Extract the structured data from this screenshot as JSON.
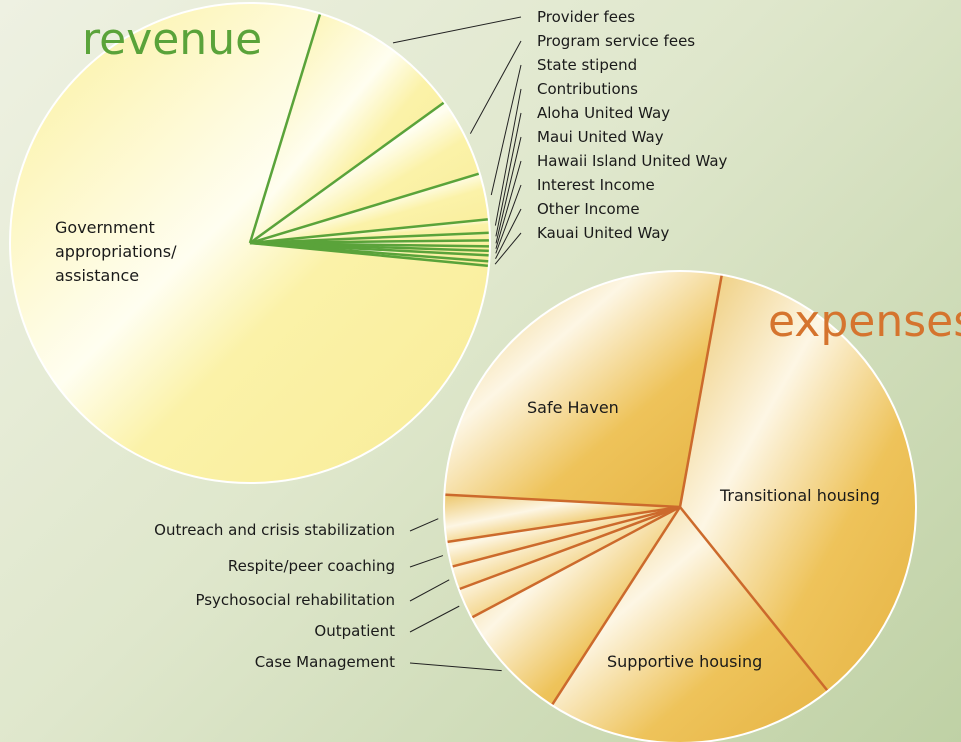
{
  "chart_data": [
    {
      "type": "pie",
      "title": "revenue",
      "categories": [
        "Provider fees",
        "Program service fees",
        "State stipend",
        "Contributions",
        "Aloha United Way",
        "Maui United Way",
        "Hawaii Island United Way",
        "Interest Income",
        "Other Income",
        "Kauai United Way",
        "Government appropriations/ assistance"
      ],
      "values": [
        10.3,
        5.3,
        3.1,
        0.9,
        0.5,
        0.4,
        0.3,
        0.3,
        0.4,
        0.3,
        78.2
      ],
      "color": "#fcf3a2",
      "line_color": "#5aa33a",
      "title_color": "#5aa33a"
    },
    {
      "type": "pie",
      "title": "expenses",
      "categories": [
        "Transitional housing",
        "Supportive housing",
        "Case Management",
        "Outpatient",
        "Psychosocial rehabilitation",
        "Respite/peer coaching",
        "Outreach and crisis stabilization",
        "Safe Haven"
      ],
      "values": [
        36.4,
        19.9,
        8.1,
        2.1,
        1.6,
        1.7,
        3.2,
        27.0
      ],
      "color": "#eab94a",
      "line_color": "#cc6a2c",
      "title_color": "#d5742e"
    }
  ]
}
